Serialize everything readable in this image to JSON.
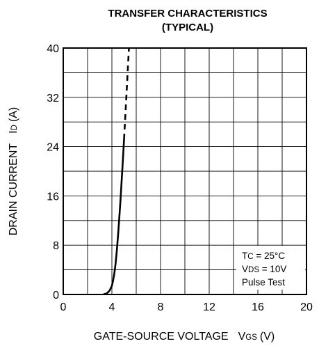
{
  "chart_data": {
    "type": "line",
    "title": "TRANSFER CHARACTERISTICS",
    "subtitle": "(TYPICAL)",
    "xlabel": {
      "text": "GATE-SOURCE VOLTAGE",
      "symbol": "V",
      "subscript": "GS",
      "unit": "(V)"
    },
    "ylabel": {
      "text": "DRAIN CURRENT",
      "symbol": "I",
      "subscript": "D",
      "unit": "(A)"
    },
    "xlim": [
      0,
      20
    ],
    "ylim": [
      0,
      40
    ],
    "xticks": [
      0,
      4,
      8,
      12,
      16,
      20
    ],
    "yticks": [
      0,
      8,
      16,
      24,
      32,
      40
    ],
    "x_minor_step": 2,
    "y_minor_step": 4,
    "grid": true,
    "annotations": [
      {
        "symbol": "T",
        "subscript": "C",
        "rest": " = 25°C"
      },
      {
        "symbol": "V",
        "subscript": "DS",
        "rest": " = 10V"
      },
      {
        "symbol": "Pulse Test",
        "subscript": "",
        "rest": ""
      }
    ],
    "series": [
      {
        "style": "solid",
        "points": [
          [
            3.3,
            0
          ],
          [
            3.6,
            0.2
          ],
          [
            3.8,
            0.6
          ],
          [
            4.0,
            1.4
          ],
          [
            4.1,
            2.3
          ],
          [
            4.2,
            3.4
          ],
          [
            4.3,
            5.0
          ],
          [
            4.4,
            7.0
          ],
          [
            4.5,
            9.5
          ],
          [
            4.6,
            12.2
          ],
          [
            4.7,
            15.2
          ],
          [
            4.8,
            18.4
          ],
          [
            4.9,
            21.8
          ],
          [
            5.0,
            25.2
          ]
        ]
      },
      {
        "style": "dashed",
        "points": [
          [
            5.0,
            25.2
          ],
          [
            5.2,
            32.5
          ],
          [
            5.4,
            40
          ]
        ]
      }
    ]
  }
}
